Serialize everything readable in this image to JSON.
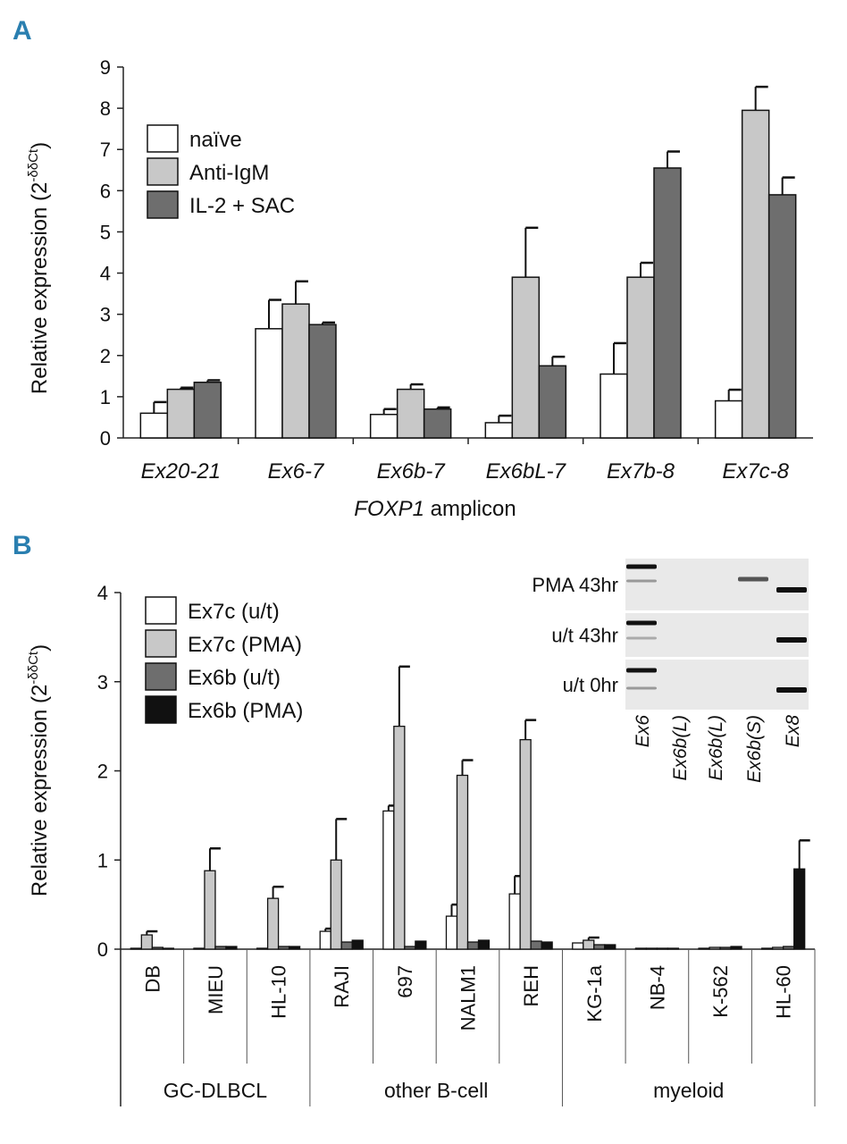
{
  "panel_a_label": "A",
  "panel_b_label": "B",
  "chart_data": [
    {
      "type": "bar",
      "title": "",
      "ylabel_main": "Relative expression (2",
      "ylabel_sup": "-δδCt",
      "ylabel_close": ")",
      "xlabel_italic": "FOXP1",
      "xlabel_rest": " amplicon",
      "ylim": [
        0,
        9
      ],
      "yticks": [
        "0",
        "1",
        "2",
        "3",
        "4",
        "5",
        "6",
        "7",
        "8",
        "9"
      ],
      "categories": [
        "Ex20-21",
        "Ex6-7",
        "Ex6b-7",
        "Ex6bL-7",
        "Ex7b-8",
        "Ex7c-8"
      ],
      "series": [
        {
          "name": "naïve",
          "color": "#ffffff",
          "values": [
            0.6,
            2.65,
            0.57,
            0.37,
            1.55,
            0.9
          ],
          "errors": [
            0.27,
            0.7,
            0.13,
            0.17,
            0.75,
            0.27
          ]
        },
        {
          "name": "Anti-IgM",
          "color": "#c8c8c8",
          "values": [
            1.18,
            3.25,
            1.18,
            3.9,
            3.9,
            7.95
          ],
          "errors": [
            0.04,
            0.55,
            0.12,
            1.2,
            0.35,
            0.57
          ]
        },
        {
          "name": "IL-2 + SAC",
          "color": "#6e6e6e",
          "values": [
            1.35,
            2.75,
            0.7,
            1.75,
            6.55,
            5.9
          ],
          "errors": [
            0.05,
            0.05,
            0.04,
            0.22,
            0.4,
            0.42
          ]
        }
      ],
      "legend_position": "top-left"
    },
    {
      "type": "bar",
      "title": "",
      "ylabel_main": "Relative expression (2",
      "ylabel_sup": "-δδCt",
      "ylabel_close": ")",
      "ylim": [
        0,
        4
      ],
      "yticks": [
        "0",
        "1",
        "2",
        "3",
        "4"
      ],
      "categories": [
        "DB",
        "MIEU",
        "HL-10",
        "RAJI",
        "697",
        "NALM1",
        "REH",
        "KG-1a",
        "NB-4",
        "K-562",
        "HL-60"
      ],
      "groups": [
        {
          "label": "GC-DLBCL",
          "span": [
            0,
            2
          ]
        },
        {
          "label": "other B-cell",
          "span": [
            3,
            6
          ]
        },
        {
          "label": "myeloid",
          "span": [
            7,
            10
          ]
        }
      ],
      "series": [
        {
          "name": "Ex7c (u/t)",
          "color": "#ffffff",
          "values": [
            0.01,
            0.01,
            0.01,
            0.2,
            1.55,
            0.37,
            0.62,
            0.07,
            0.01,
            0.01,
            0.01
          ],
          "errors": [
            0.01,
            0.0,
            0.0,
            0.03,
            0.06,
            0.13,
            0.2,
            0.02,
            0.0,
            0.0,
            0.0
          ]
        },
        {
          "name": "Ex7c (PMA)",
          "color": "#c8c8c8",
          "values": [
            0.16,
            0.88,
            0.57,
            1.0,
            2.5,
            1.95,
            2.35,
            0.1,
            0.01,
            0.02,
            0.02
          ],
          "errors": [
            0.04,
            0.25,
            0.13,
            0.46,
            0.67,
            0.17,
            0.22,
            0.03,
            0.0,
            0.0,
            0.0
          ]
        },
        {
          "name": "Ex6b (u/t)",
          "color": "#6e6e6e",
          "values": [
            0.02,
            0.03,
            0.03,
            0.08,
            0.03,
            0.08,
            0.09,
            0.05,
            0.01,
            0.02,
            0.03
          ],
          "errors": [
            0.0,
            0.0,
            0.0,
            0.01,
            0.0,
            0.01,
            0.01,
            0.0,
            0.0,
            0.0,
            0.0
          ]
        },
        {
          "name": "Ex6b (PMA)",
          "color": "#111111",
          "values": [
            0.01,
            0.03,
            0.03,
            0.1,
            0.09,
            0.1,
            0.08,
            0.05,
            0.01,
            0.03,
            0.9
          ],
          "errors": [
            0.0,
            0.0,
            0.0,
            0.01,
            0.01,
            0.01,
            0.01,
            0.0,
            0.0,
            0.0,
            0.32
          ]
        }
      ],
      "legend_position": "top-left"
    }
  ],
  "gel_inset": {
    "row_labels": [
      "PMA 43hr",
      "u/t 43hr",
      "u/t 0hr"
    ],
    "column_labels": [
      "Ex6",
      "Ex6b(L)",
      "Ex6b(L)",
      "Ex6b(S)",
      "Ex8"
    ]
  }
}
